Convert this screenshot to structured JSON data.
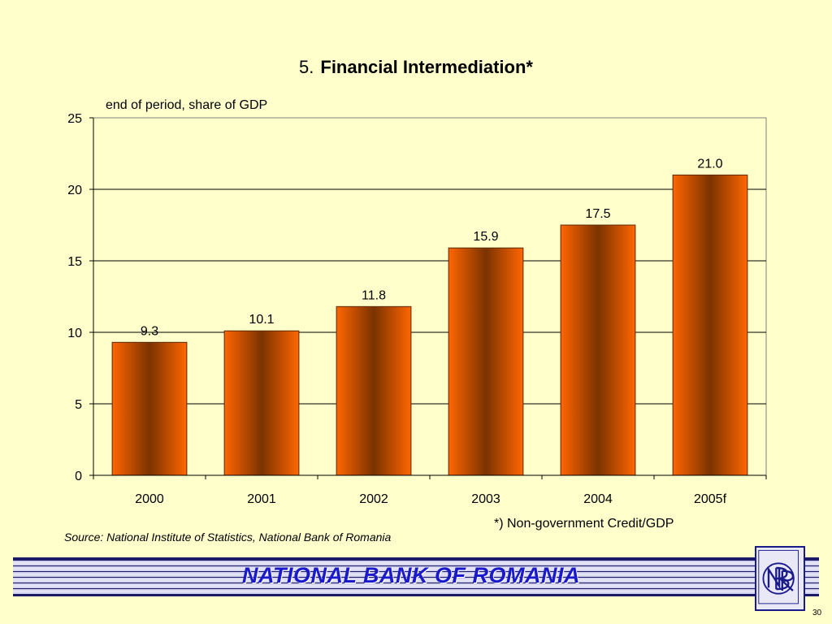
{
  "slide": {
    "number": "5.",
    "title": "Financial Intermediation*",
    "footnote": "*) Non-government Credit/GDP",
    "source": "Source: National Institute of Statistics, National Bank of Romania",
    "bank_name": "NATIONAL BANK OF ROMANIA",
    "page_number": "30"
  },
  "logo": {
    "icon": "nbr-monogram-icon"
  },
  "colors": {
    "background": "#FFFFCC",
    "bar_edge": "#FF6600",
    "bar_center": "#7A3300",
    "banner_text": "#1A1ACC"
  },
  "chart_data": {
    "type": "bar",
    "title": "Financial Intermediation*",
    "subtitle": "end of period, share of GDP",
    "categories": [
      "2000",
      "2001",
      "2002",
      "2003",
      "2004",
      "2005f"
    ],
    "values": [
      9.3,
      10.1,
      11.8,
      15.9,
      17.5,
      21.0
    ],
    "data_labels": [
      "9.3",
      "10.1",
      "11.8",
      "15.9",
      "17.5",
      "21.0"
    ],
    "ylim": [
      0,
      25
    ],
    "yticks": [
      0,
      5,
      10,
      15,
      20,
      25
    ],
    "grid": true,
    "legend": "none"
  }
}
